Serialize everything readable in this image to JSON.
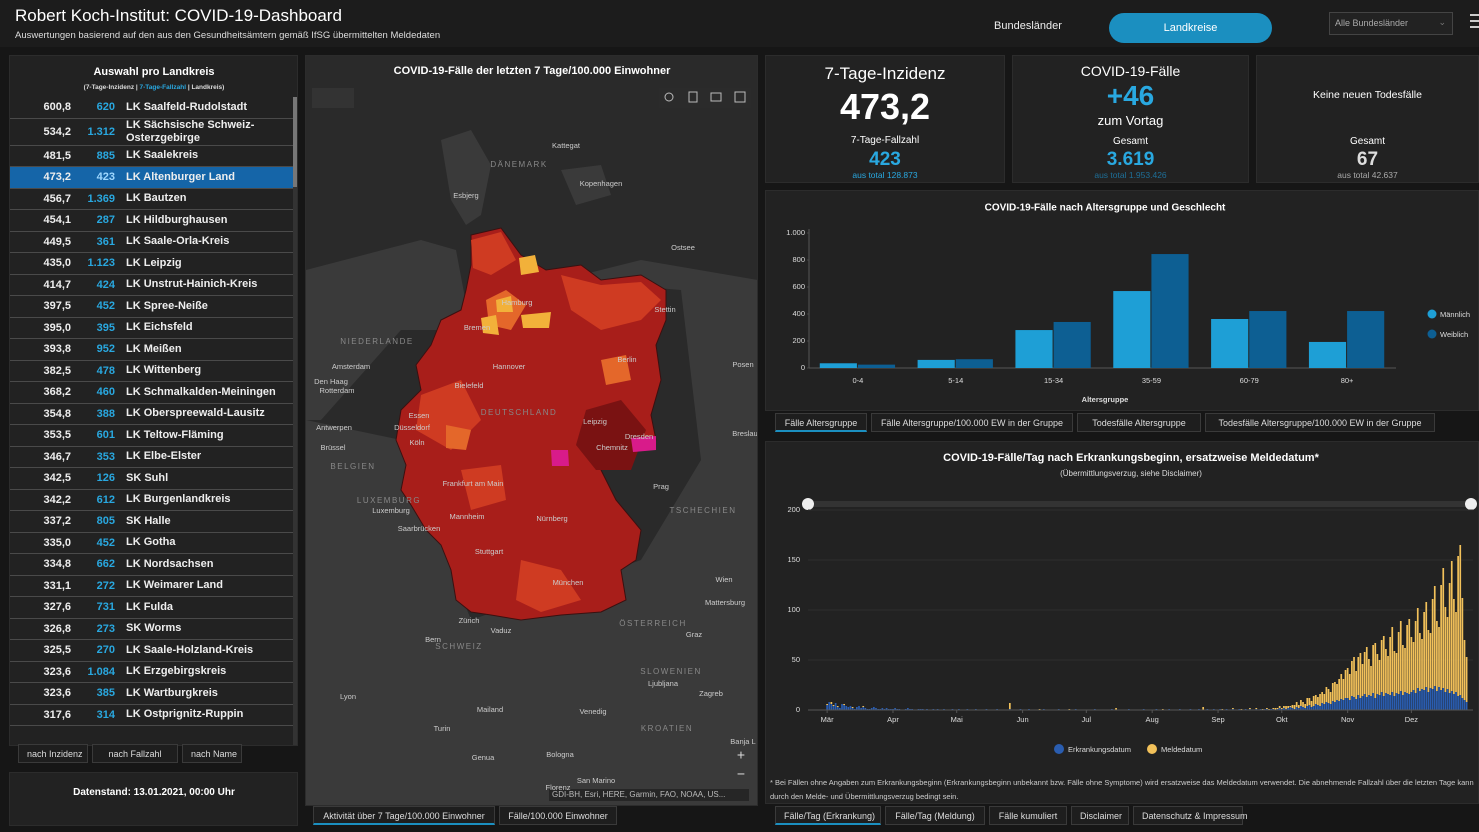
{
  "header": {
    "title": "Robert Koch-Institut: COVID-19-Dashboard",
    "subtitle": "Auswertungen basierend auf den aus den Gesundheitsämtern gemäß IfSG übermittelten Meldedaten",
    "tabs": [
      "Bundesländer",
      "Landkreise"
    ],
    "dropdown": "Alle Bundesländer"
  },
  "list": {
    "title": "Auswahl pro Landkreis",
    "legend": [
      "(7-Tage-Inzidenz |",
      "7-Tage-Fallzahl",
      "| Landkreis)"
    ],
    "rows": [
      [
        "600,8",
        "620",
        "LK Saalfeld-Rudolstadt"
      ],
      [
        "534,2",
        "1.312",
        "LK Sächsische Schweiz-Osterzgebirge"
      ],
      [
        "481,5",
        "885",
        "LK Saalekreis"
      ],
      [
        "473,2",
        "423",
        "LK Altenburger Land"
      ],
      [
        "456,7",
        "1.369",
        "LK Bautzen"
      ],
      [
        "454,1",
        "287",
        "LK Hildburghausen"
      ],
      [
        "449,5",
        "361",
        "LK Saale-Orla-Kreis"
      ],
      [
        "435,0",
        "1.123",
        "LK Leipzig"
      ],
      [
        "414,7",
        "424",
        "LK Unstrut-Hainich-Kreis"
      ],
      [
        "397,5",
        "452",
        "LK Spree-Neiße"
      ],
      [
        "395,0",
        "395",
        "LK Eichsfeld"
      ],
      [
        "393,8",
        "952",
        "LK Meißen"
      ],
      [
        "382,5",
        "478",
        "LK Wittenberg"
      ],
      [
        "368,2",
        "460",
        "LK Schmalkalden-Meiningen"
      ],
      [
        "354,8",
        "388",
        "LK Oberspreewald-Lausitz"
      ],
      [
        "353,5",
        "601",
        "LK Teltow-Fläming"
      ],
      [
        "346,7",
        "353",
        "LK Elbe-Elster"
      ],
      [
        "342,5",
        "126",
        "SK Suhl"
      ],
      [
        "342,2",
        "612",
        "LK Burgenlandkreis"
      ],
      [
        "337,2",
        "805",
        "SK Halle"
      ],
      [
        "335,0",
        "452",
        "LK Gotha"
      ],
      [
        "334,8",
        "662",
        "LK Nordsachsen"
      ],
      [
        "331,1",
        "272",
        "LK Weimarer Land"
      ],
      [
        "327,6",
        "731",
        "LK Fulda"
      ],
      [
        "326,8",
        "273",
        "SK Worms"
      ],
      [
        "325,5",
        "270",
        "LK Saale-Holzland-Kreis"
      ],
      [
        "323,6",
        "1.084",
        "LK Erzgebirgskreis"
      ],
      [
        "323,6",
        "385",
        "LK Wartburgkreis"
      ],
      [
        "317,6",
        "314",
        "LK Ostprignitz-Ruppin"
      ]
    ],
    "sort_buttons": [
      "nach Inzidenz",
      "nach Fallzahl",
      "nach Name"
    ],
    "status": "Datenstand: 13.01.2021, 00:00 Uhr"
  },
  "map": {
    "title": "COVID-19-Fälle der letzten 7 Tage/100.000 Einwohner",
    "labels": [
      "Kattegat",
      "DÄNEMARK",
      "Esbjerg",
      "Kopenhagen",
      "Ostsee",
      "Hamburg",
      "Stettin",
      "Bremen",
      "NIEDERLANDE",
      "Amsterdam",
      "Hannover",
      "Berlin",
      "Posen",
      "Den Haag",
      "Rotterdam",
      "Bielefeld",
      "Essen",
      "DEUTSCHLAND",
      "Düsseldorf",
      "Antwerpen",
      "Köln",
      "Leipzig",
      "Dresden",
      "Breslau",
      "Brüssel",
      "Chemnitz",
      "BELGIEN",
      "Frankfurt am Main",
      "Prag",
      "LUXEMBURG",
      "Luxemburg",
      "Mannheim",
      "TSCHECHIEN",
      "Saarbrücken",
      "Nürnberg",
      "Stuttgart",
      "Wien",
      "München",
      "Mattersburg",
      "Zürich",
      "ÖSTERREICH",
      "Vaduz",
      "Graz",
      "Bern",
      "SCHWEIZ",
      "SLOWENIEN",
      "Ljubljana",
      "Lyon",
      "Zagreb",
      "Mailand",
      "Venedig",
      "Turin",
      "KROATIEN",
      "Genua",
      "Bologna",
      "Banja L",
      "San Marino",
      "Florenz"
    ],
    "attribution": "GDI-BH, Esri, HERE, Garmin, FAO, NOAA, US...",
    "tabs": [
      "Aktivität über 7 Tage/100.000 Einwohner",
      "Fälle/100.000 Einwohner"
    ]
  },
  "kpis": [
    {
      "title": "7-Tage-Inzidenz",
      "value": "473,2",
      "sub_label": "7-Tage-Fallzahl",
      "sub_value": "423",
      "total": "aus total 128.873"
    },
    {
      "title": "COVID-19-Fälle",
      "value": "+46",
      "value_note": "zum Vortag",
      "sub_label": "Gesamt",
      "sub_value": "3.619",
      "total": "aus total 1.953.426"
    },
    {
      "title": "Keine neuen Todesfälle",
      "sub_label": "Gesamt",
      "sub_value": "67",
      "total": "aus total 42.637"
    }
  ],
  "chart_data": [
    {
      "type": "bar",
      "title": "COVID-19-Fälle nach Altersgruppe und Geschlecht",
      "x_label": "Altersgruppe",
      "categories": [
        "0-4",
        "5-14",
        "15-34",
        "35-59",
        "60-79",
        "80+"
      ],
      "series": [
        {
          "name": "Männlich",
          "color": "#1e9fd6",
          "values": [
            35,
            60,
            281,
            570,
            363,
            193
          ]
        },
        {
          "name": "Weiblich",
          "color": "#0d5f93",
          "values": [
            25,
            65,
            341,
            844,
            422,
            422
          ]
        }
      ],
      "ylim": [
        0,
        1000
      ],
      "yticks": [
        0,
        200,
        400,
        600,
        800,
        {
          "value": 1000,
          "label": "1.000"
        }
      ],
      "grid": false,
      "legend": "right",
      "tabs": [
        "Fälle Altersgruppe",
        "Fälle Altersgruppe/100.000 EW in der Gruppe",
        "Todesfälle Altersgruppe",
        "Todesfälle Altersgruppe/100.000 EW in der Gruppe"
      ]
    },
    {
      "type": "bar",
      "stacked": true,
      "title": "COVID-19-Fälle/Tag nach Erkrankungsbeginn, ersatzweise Meldedatum*",
      "subtitle": "(Übermittlungsverzug, siehe Disclaimer)",
      "xlim": [
        -9,
        304
      ],
      "xticks": [
        {
          "value": 0,
          "label": "Mär"
        },
        {
          "value": 31,
          "label": "Apr"
        },
        {
          "value": 61,
          "label": "Mai"
        },
        {
          "value": 92,
          "label": "Jun"
        },
        {
          "value": 122,
          "label": "Jul"
        },
        {
          "value": 153,
          "label": "Aug"
        },
        {
          "value": 184,
          "label": "Sep"
        },
        {
          "value": 214,
          "label": "Okt"
        },
        {
          "value": 245,
          "label": "Nov"
        },
        {
          "value": 275,
          "label": "Dez"
        }
      ],
      "ylim": [
        0,
        200
      ],
      "yticks": [
        0,
        50,
        100,
        150,
        200
      ],
      "grid": true,
      "series": [
        {
          "name": "Erkrankungsdatum",
          "color": "#2a5db0",
          "values": [
            5,
            8,
            6,
            4,
            7,
            3,
            2,
            6,
            5,
            4,
            3,
            4,
            2,
            1,
            3,
            4,
            2,
            3,
            2,
            1,
            1,
            2,
            3,
            2,
            1,
            1,
            2,
            1,
            2,
            1,
            1,
            1,
            2,
            1,
            1,
            0,
            0,
            1,
            2,
            1,
            1,
            0,
            0,
            1,
            1,
            1,
            0,
            1,
            0,
            0,
            1,
            0,
            1,
            0,
            0,
            1,
            0,
            0,
            0,
            1,
            0,
            0,
            1,
            0,
            0,
            0,
            1,
            0,
            0,
            0,
            1,
            0,
            0,
            0,
            0,
            1,
            0,
            0,
            0,
            0,
            1,
            0,
            0,
            0,
            0,
            0,
            1,
            0,
            0,
            0,
            0,
            1,
            0,
            0,
            0,
            1,
            0,
            0,
            0,
            0,
            0,
            0,
            1,
            0,
            0,
            0,
            0,
            0,
            0,
            1,
            0,
            0,
            0,
            0,
            0,
            0,
            0,
            1,
            0,
            0,
            0,
            0,
            0,
            0,
            0,
            0,
            1,
            0,
            0,
            0,
            0,
            0,
            0,
            0,
            1,
            0,
            0,
            0,
            0,
            0,
            0,
            0,
            1,
            0,
            0,
            0,
            0,
            0,
            0,
            1,
            0,
            0,
            0,
            0,
            0,
            1,
            0,
            0,
            0,
            0,
            0,
            1,
            0,
            0,
            0,
            0,
            1,
            0,
            0,
            0,
            0,
            1,
            0,
            0,
            0,
            1,
            0,
            0,
            0,
            1,
            0,
            0,
            1,
            0,
            0,
            1,
            0,
            0,
            1,
            0,
            0,
            1,
            0,
            0,
            1,
            0,
            0,
            1,
            0,
            1,
            0,
            0,
            1,
            0,
            1,
            0,
            1,
            1,
            0,
            1,
            1,
            0,
            1,
            2,
            1,
            2,
            1,
            2,
            3,
            2,
            1,
            3,
            2,
            4,
            3,
            2,
            4,
            5,
            3,
            4,
            6,
            5,
            4,
            7,
            6,
            8,
            7,
            6,
            9,
            8,
            10,
            9,
            11,
            10,
            12,
            12,
            10,
            14,
            13,
            11,
            15,
            12,
            14,
            16,
            13,
            15,
            14,
            17,
            12,
            16,
            15,
            18,
            14,
            17,
            16,
            15,
            18,
            14,
            17,
            16,
            19,
            15,
            18,
            17,
            16,
            18,
            20,
            17,
            22,
            19,
            21,
            20,
            23,
            18,
            22,
            21,
            24,
            19,
            23,
            20,
            22,
            18,
            21,
            17,
            19,
            16,
            18,
            14,
            15,
            12,
            10,
            8
          ]
        },
        {
          "name": "Meldedatum",
          "color": "#f2c15a",
          "values": [
            1,
            0,
            2,
            1,
            0,
            1,
            0,
            0,
            1,
            0,
            0,
            0,
            1,
            0,
            0,
            0,
            0,
            1,
            0,
            0,
            0,
            0,
            0,
            0,
            0,
            0,
            0,
            0,
            0,
            0,
            0,
            0,
            0,
            0,
            0,
            0,
            0,
            0,
            0,
            0,
            0,
            0,
            0,
            0,
            0,
            0,
            0,
            0,
            0,
            0,
            0,
            0,
            0,
            0,
            0,
            0,
            0,
            0,
            0,
            0,
            0,
            0,
            0,
            0,
            0,
            0,
            0,
            0,
            0,
            0,
            0,
            0,
            0,
            0,
            0,
            0,
            0,
            0,
            0,
            0,
            0,
            0,
            0,
            0,
            0,
            0,
            6,
            0,
            0,
            0,
            0,
            0,
            0,
            0,
            0,
            0,
            0,
            0,
            0,
            0,
            1,
            0,
            0,
            0,
            0,
            0,
            0,
            0,
            0,
            0,
            0,
            0,
            0,
            0,
            1,
            0,
            0,
            0,
            0,
            0,
            0,
            0,
            0,
            0,
            0,
            0,
            0,
            0,
            0,
            0,
            0,
            0,
            0,
            0,
            0,
            0,
            2,
            0,
            0,
            0,
            0,
            0,
            0,
            0,
            0,
            0,
            0,
            0,
            0,
            0,
            0,
            0,
            0,
            0,
            0,
            0,
            0,
            0,
            1,
            0,
            0,
            0,
            0,
            0,
            0,
            0,
            0,
            0,
            0,
            0,
            0,
            0,
            0,
            0,
            0,
            0,
            0,
            3,
            0,
            0,
            0,
            0,
            0,
            0,
            0,
            0,
            1,
            0,
            0,
            0,
            0,
            1,
            0,
            0,
            0,
            1,
            0,
            0,
            0,
            1,
            0,
            0,
            1,
            0,
            0,
            1,
            0,
            1,
            1,
            0,
            1,
            2,
            1,
            2,
            1,
            2,
            3,
            2,
            1,
            3,
            4,
            5,
            3,
            6,
            5,
            4,
            8,
            7,
            6,
            10,
            9,
            8,
            12,
            11,
            10,
            15,
            14,
            12,
            18,
            20,
            16,
            22,
            25,
            21,
            28,
            30,
            26,
            35,
            40,
            28,
            38,
            45,
            32,
            42,
            50,
            36,
            30,
            48,
            55,
            40,
            35,
            52,
            60,
            44,
            38,
            58,
            65,
            45,
            40,
            62,
            70,
            50,
            44,
            68,
            75,
            55,
            48,
            72,
            80,
            58,
            50,
            78,
            85,
            62,
            55,
            90,
            100,
            70,
            60,
            105,
            120,
            85,
            72,
            110,
            130,
            95,
            80,
            140,
            150,
            100,
            60,
            45
          ]
        }
      ],
      "note": "* Bei Fällen ohne Angaben zum Erkrankungsbeginn (Erkrankungsbeginn unbekannt bzw. Fälle ohne Symptome) wird ersatzweise das Meldedatum verwendet. Die abnehmende Fallzahl über die letzten Tage kann durch den Melde- und Übermittlungsverzug bedingt sein.",
      "tabs": [
        "Fälle/Tag (Erkrankung)",
        "Fälle/Tag (Meldung)",
        "Fälle kumuliert",
        "Disclaimer",
        "Datenschutz & Impressum"
      ]
    }
  ]
}
